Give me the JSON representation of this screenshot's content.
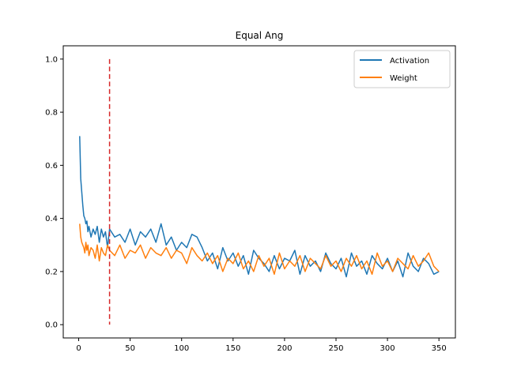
{
  "chart_data": {
    "type": "line",
    "title": "Equal Ang",
    "xlabel": "",
    "ylabel": "",
    "xlim": [
      -15,
      366
    ],
    "ylim": [
      -0.05,
      1.05
    ],
    "xticks": [
      0,
      50,
      100,
      150,
      200,
      250,
      300,
      350
    ],
    "yticks": [
      0.0,
      0.2,
      0.4,
      0.6,
      0.8,
      1.0
    ],
    "xtick_labels": [
      "0",
      "50",
      "100",
      "150",
      "200",
      "250",
      "300",
      "350"
    ],
    "ytick_labels": [
      "0.0",
      "0.2",
      "0.4",
      "0.6",
      "0.8",
      "1.0"
    ],
    "grid": false,
    "legend_position": "top-right",
    "vline": {
      "x": 30,
      "y_range": [
        0.0,
        1.0
      ],
      "color": "#d62728",
      "style": "dashed"
    },
    "series": [
      {
        "name": "Activation",
        "color": "#1f77b4",
        "x": [
          1,
          2,
          3,
          4,
          5,
          6,
          7,
          8,
          9,
          10,
          12,
          14,
          16,
          18,
          20,
          22,
          24,
          26,
          28,
          30,
          35,
          40,
          45,
          50,
          55,
          60,
          65,
          70,
          75,
          80,
          85,
          90,
          95,
          100,
          105,
          110,
          115,
          120,
          125,
          130,
          135,
          140,
          145,
          150,
          155,
          160,
          165,
          170,
          175,
          180,
          185,
          190,
          195,
          200,
          205,
          210,
          215,
          220,
          225,
          230,
          235,
          240,
          245,
          250,
          255,
          260,
          265,
          270,
          275,
          280,
          285,
          290,
          295,
          300,
          305,
          310,
          315,
          320,
          325,
          330,
          335,
          340,
          345,
          350
        ],
        "values": [
          0.71,
          0.55,
          0.5,
          0.45,
          0.41,
          0.4,
          0.38,
          0.39,
          0.35,
          0.37,
          0.33,
          0.36,
          0.34,
          0.37,
          0.31,
          0.36,
          0.33,
          0.35,
          0.29,
          0.36,
          0.33,
          0.34,
          0.31,
          0.36,
          0.3,
          0.35,
          0.33,
          0.36,
          0.31,
          0.38,
          0.3,
          0.33,
          0.28,
          0.31,
          0.29,
          0.34,
          0.33,
          0.29,
          0.24,
          0.27,
          0.21,
          0.29,
          0.24,
          0.27,
          0.22,
          0.26,
          0.19,
          0.28,
          0.25,
          0.23,
          0.2,
          0.26,
          0.21,
          0.25,
          0.24,
          0.28,
          0.19,
          0.26,
          0.22,
          0.24,
          0.2,
          0.27,
          0.23,
          0.21,
          0.25,
          0.18,
          0.27,
          0.22,
          0.24,
          0.19,
          0.26,
          0.23,
          0.21,
          0.25,
          0.2,
          0.24,
          0.18,
          0.27,
          0.22,
          0.2,
          0.25,
          0.23,
          0.19,
          0.2
        ]
      },
      {
        "name": "Weight",
        "color": "#ff7f0e",
        "x": [
          1,
          2,
          3,
          4,
          5,
          6,
          7,
          8,
          9,
          10,
          12,
          14,
          16,
          18,
          20,
          22,
          24,
          26,
          28,
          30,
          35,
          40,
          45,
          50,
          55,
          60,
          65,
          70,
          75,
          80,
          85,
          90,
          95,
          100,
          105,
          110,
          115,
          120,
          125,
          130,
          135,
          140,
          145,
          150,
          155,
          160,
          165,
          170,
          175,
          180,
          185,
          190,
          195,
          200,
          205,
          210,
          215,
          220,
          225,
          230,
          235,
          240,
          245,
          250,
          255,
          260,
          265,
          270,
          275,
          280,
          285,
          290,
          295,
          300,
          305,
          310,
          315,
          320,
          325,
          330,
          335,
          340,
          345,
          350
        ],
        "values": [
          0.38,
          0.33,
          0.31,
          0.3,
          0.29,
          0.27,
          0.31,
          0.28,
          0.3,
          0.26,
          0.29,
          0.28,
          0.25,
          0.3,
          0.24,
          0.29,
          0.27,
          0.26,
          0.3,
          0.28,
          0.26,
          0.3,
          0.25,
          0.28,
          0.27,
          0.3,
          0.25,
          0.29,
          0.27,
          0.26,
          0.29,
          0.25,
          0.28,
          0.27,
          0.23,
          0.29,
          0.26,
          0.24,
          0.27,
          0.23,
          0.26,
          0.2,
          0.25,
          0.23,
          0.27,
          0.21,
          0.24,
          0.2,
          0.26,
          0.22,
          0.25,
          0.19,
          0.27,
          0.21,
          0.24,
          0.22,
          0.26,
          0.2,
          0.25,
          0.23,
          0.21,
          0.26,
          0.22,
          0.24,
          0.2,
          0.25,
          0.22,
          0.26,
          0.21,
          0.24,
          0.19,
          0.27,
          0.22,
          0.24,
          0.2,
          0.25,
          0.23,
          0.21,
          0.26,
          0.22,
          0.24,
          0.27,
          0.22,
          0.2
        ]
      }
    ]
  }
}
